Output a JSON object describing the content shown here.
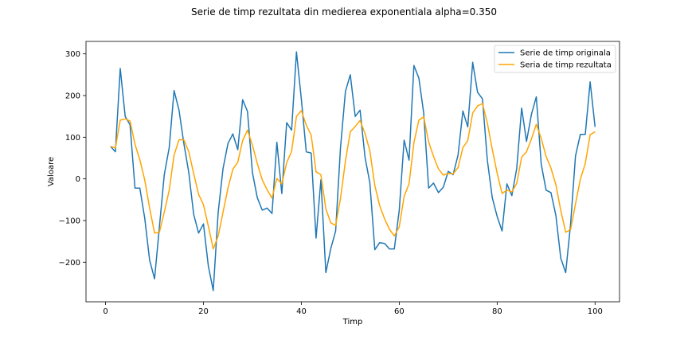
{
  "chart_data": {
    "type": "line",
    "title": "Serie de timp rezultata din medierea exponentiala alpha=0.350",
    "xlabel": "Timp",
    "ylabel": "Valoare",
    "xlim": [
      -4,
      105
    ],
    "ylim": [
      -295,
      330
    ],
    "xticks": [
      0,
      20,
      40,
      60,
      80,
      100
    ],
    "yticks": [
      -200,
      -100,
      0,
      100,
      200,
      300
    ],
    "grid": false,
    "legend_position": "top-right",
    "series": [
      {
        "name": "Serie de timp originala",
        "color": "#1f77b4",
        "x": [
          1,
          2,
          3,
          4,
          5,
          6,
          7,
          8,
          9,
          10,
          11,
          12,
          13,
          14,
          15,
          16,
          17,
          18,
          19,
          20,
          21,
          22,
          23,
          24,
          25,
          26,
          27,
          28,
          29,
          30,
          31,
          32,
          33,
          34,
          35,
          36,
          37,
          38,
          39,
          40,
          41,
          42,
          43,
          44,
          45,
          46,
          47,
          48,
          49,
          50,
          51,
          52,
          53,
          54,
          55,
          56,
          57,
          58,
          59,
          60,
          61,
          62,
          63,
          64,
          65,
          66,
          67,
          68,
          69,
          70,
          71,
          72,
          73,
          74,
          75,
          76,
          77,
          78,
          79,
          80,
          81,
          82,
          83,
          84,
          85,
          86,
          87,
          88,
          89,
          90,
          91,
          92,
          93,
          94,
          95,
          96,
          97,
          98,
          99,
          100
        ],
        "y": [
          78,
          65,
          265,
          150,
          130,
          -22,
          -22,
          -95,
          -195,
          -240,
          -115,
          10,
          75,
          212,
          165,
          85,
          15,
          -85,
          -130,
          -108,
          -210,
          -268,
          -80,
          25,
          85,
          108,
          70,
          190,
          162,
          15,
          -45,
          -75,
          -70,
          -83,
          88,
          -35,
          135,
          117,
          305,
          190,
          65,
          62,
          -142,
          -2,
          -225,
          -168,
          -125,
          75,
          210,
          250,
          150,
          165,
          52,
          -10,
          -170,
          -153,
          -155,
          -168,
          -168,
          -75,
          93,
          45,
          272,
          242,
          158,
          -22,
          -10,
          -33,
          -20,
          18,
          10,
          57,
          163,
          125,
          280,
          208,
          192,
          45,
          -45,
          -90,
          -125,
          -12,
          -40,
          25,
          170,
          90,
          155,
          197,
          35,
          -27,
          -33,
          -88,
          -190,
          -225,
          -110,
          55,
          107,
          107,
          233,
          125
        ]
      },
      {
        "name": "Seria de timp rezultata",
        "color": "#ffa500",
        "x": [
          1,
          2,
          3,
          4,
          5,
          6,
          7,
          8,
          9,
          10,
          11,
          12,
          13,
          14,
          15,
          16,
          17,
          18,
          19,
          20,
          21,
          22,
          23,
          24,
          25,
          26,
          27,
          28,
          29,
          30,
          31,
          32,
          33,
          34,
          35,
          36,
          37,
          38,
          39,
          40,
          41,
          42,
          43,
          44,
          45,
          46,
          47,
          48,
          49,
          50,
          51,
          52,
          53,
          54,
          55,
          56,
          57,
          58,
          59,
          60,
          61,
          62,
          63,
          64,
          65,
          66,
          67,
          68,
          69,
          70,
          71,
          72,
          73,
          74,
          75,
          76,
          77,
          78,
          79,
          80,
          81,
          82,
          83,
          84,
          85,
          86,
          87,
          88,
          89,
          90,
          91,
          92,
          93,
          94,
          95,
          96,
          97,
          98,
          99,
          100
        ],
        "y": [
          78,
          74,
          141,
          144,
          139,
          83,
          46,
          -3,
          -70,
          -130,
          -128,
          -80,
          -27,
          57,
          94,
          94,
          65,
          13,
          -37,
          -62,
          -114,
          -168,
          -137,
          -80,
          -22,
          23,
          40,
          92,
          117,
          81,
          37,
          -2,
          -26,
          -46,
          1,
          -12,
          39,
          66,
          150,
          164,
          129,
          105,
          17,
          10,
          -72,
          -105,
          -112,
          -47,
          43,
          113,
          126,
          140,
          109,
          67,
          -16,
          -64,
          -96,
          -121,
          -137,
          -115,
          -42,
          -12,
          87,
          141,
          149,
          89,
          54,
          24,
          9,
          13,
          12,
          27,
          75,
          92,
          158,
          175,
          181,
          134,
          71,
          14,
          -35,
          -27,
          -31,
          -11,
          52,
          65,
          96,
          131,
          97,
          54,
          26,
          -14,
          -76,
          -128,
          -122,
          -60,
          -1,
          37,
          106,
          113
        ]
      }
    ]
  }
}
